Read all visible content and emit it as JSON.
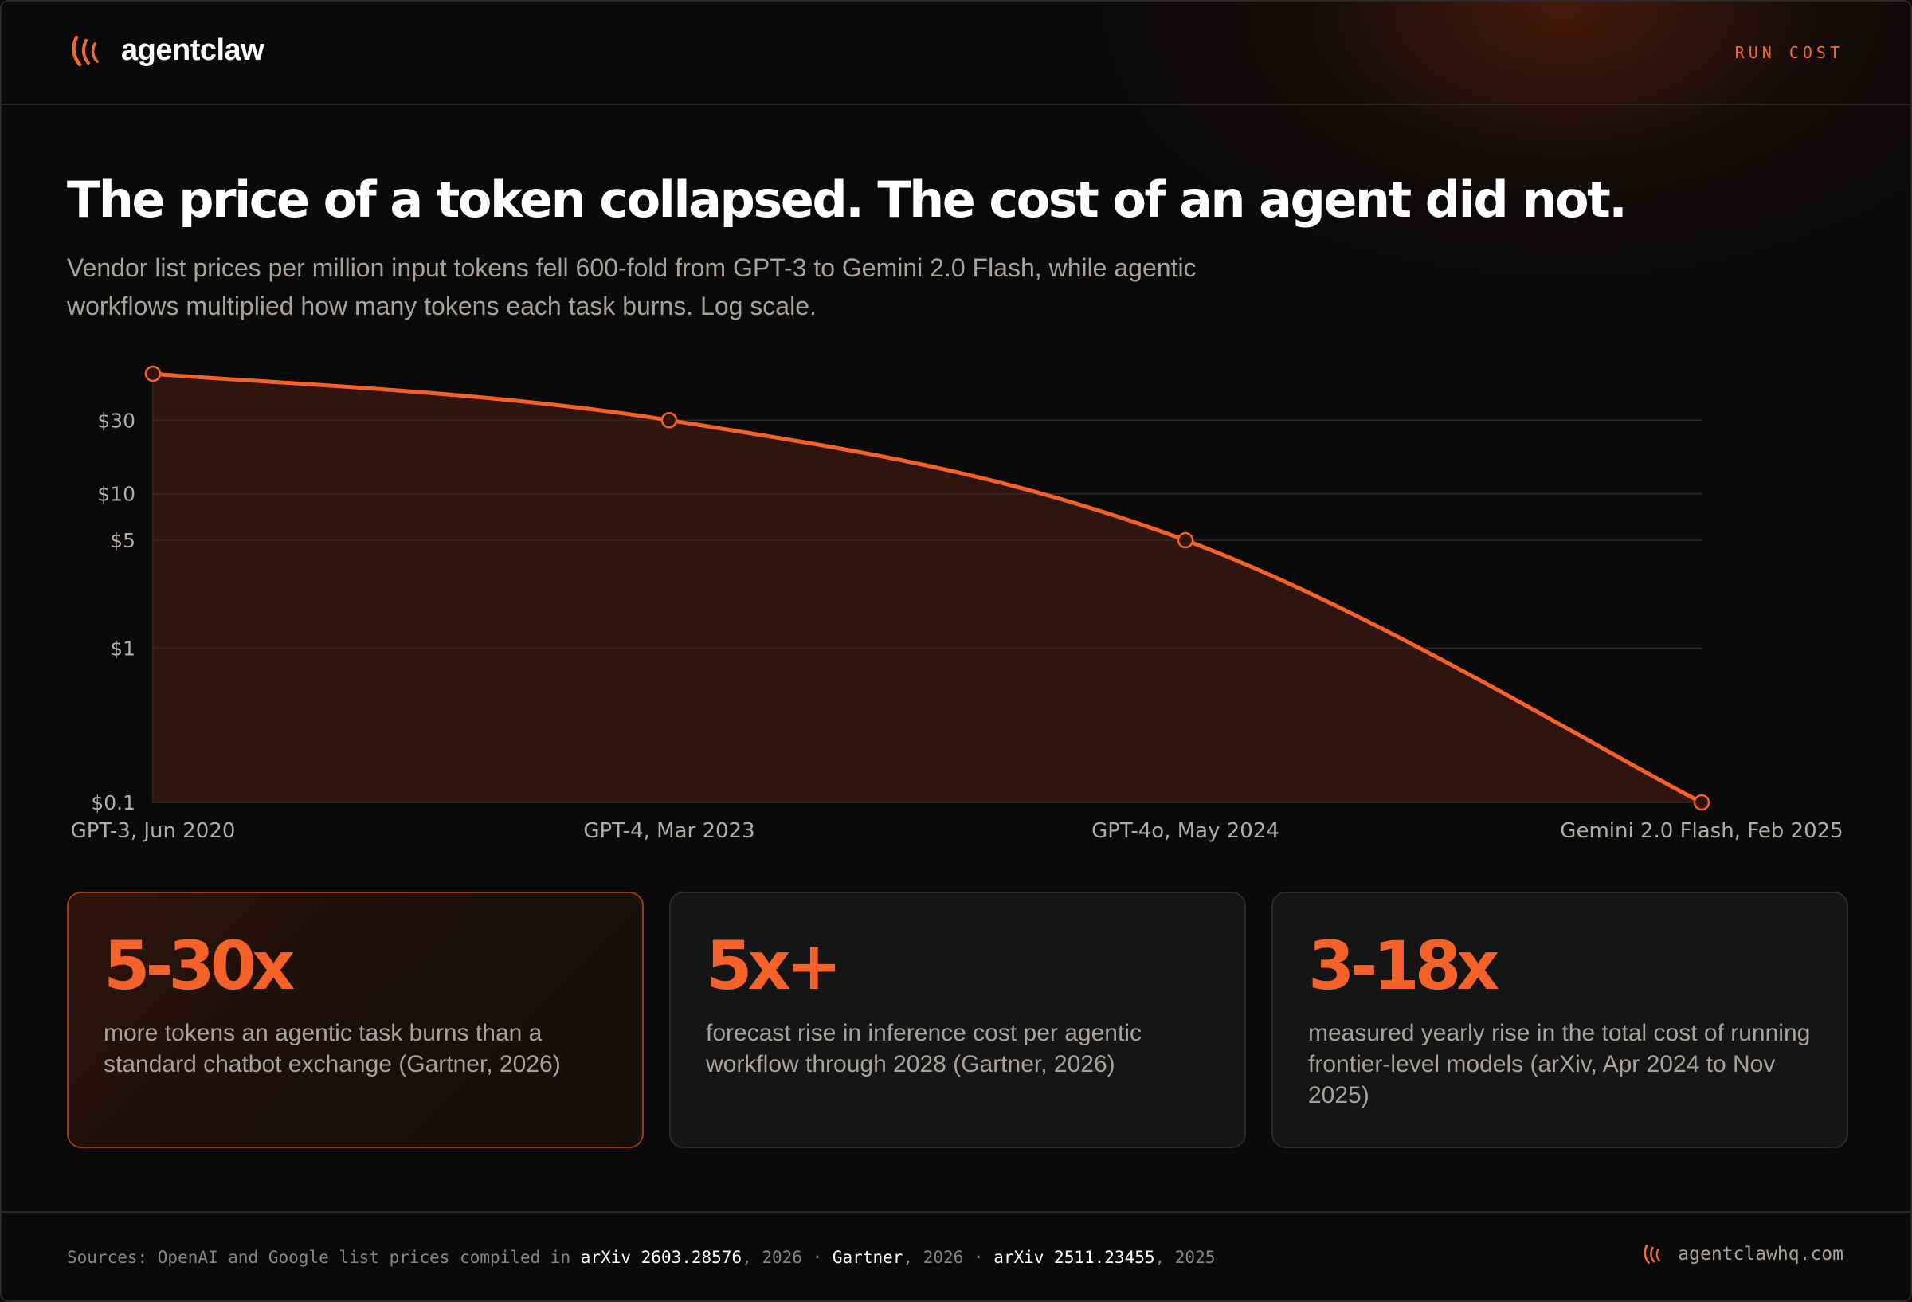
{
  "brand": {
    "name": "agentclaw",
    "logo_icon": "claw-marks-icon"
  },
  "header": {
    "nav_label": "RUN COST"
  },
  "headline": "The price of a token collapsed. The cost of an agent did not.",
  "subtitle": "Vendor list prices per million input tokens fell 600-fold from GPT-3 to Gemini 2.0 Flash, while agentic workflows multiplied how many tokens each task burns. Log scale.",
  "chart_data": {
    "type": "area",
    "scale": "log",
    "x": [
      "GPT-3, Jun 2020",
      "GPT-4, Mar 2023",
      "GPT-4o, May 2024",
      "Gemini 2.0 Flash, Feb 2025"
    ],
    "values": [
      60,
      30,
      5,
      0.1
    ],
    "y_ticks": [
      30,
      10,
      5,
      1,
      0.1
    ],
    "y_tick_labels": [
      "$30",
      "$10",
      "$5",
      "$1",
      "$0.1"
    ],
    "ylim": [
      0.1,
      60
    ],
    "grid": true,
    "colors": {
      "line": "#f4622a",
      "area": "#2f150e",
      "grid": "#2e2a27",
      "tick": "#b3aca5"
    }
  },
  "stats": [
    {
      "value": "5-30x",
      "text": "more tokens an agentic task burns than a standard chatbot exchange (Gartner, 2026)"
    },
    {
      "value": "5x+",
      "text": "forecast rise in inference cost per agentic workflow through 2028 (Gartner, 2026)"
    },
    {
      "value": "3-18x",
      "text": "measured yearly rise in the total cost of running frontier-level models (arXiv, Apr 2024 to Nov 2025)"
    }
  ],
  "footer": {
    "sources_prefix": "Sources: OpenAI and Google list prices compiled in ",
    "source1": "arXiv 2603.28576",
    "source1_year": ", 2026 · ",
    "source2": "Gartner",
    "source2_year": ", 2026 · ",
    "source3": "arXiv 2511.23455",
    "source3_year": ", 2025",
    "site": "agentclawhq.com"
  },
  "accent_color": "#f4622a"
}
